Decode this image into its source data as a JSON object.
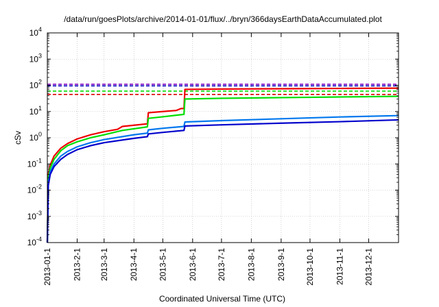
{
  "chart_data": {
    "type": "line",
    "title": "/data/run/goesPlots/archive/2014-01-01/flux/../bryn/366daysEarthDataAccumulated.plot",
    "xlabel": "Coordinated Universal Time (UTC)",
    "ylabel": "cSv",
    "y_scale": "log",
    "ylim": [
      0.0001,
      10000
    ],
    "xlim": [
      "2013-01-01",
      "2014-01-01"
    ],
    "y_ticks": [
      {
        "value": 0.0001,
        "base": "10",
        "exp": "-4"
      },
      {
        "value": 0.001,
        "base": "10",
        "exp": "-3"
      },
      {
        "value": 0.01,
        "base": "10",
        "exp": "-2"
      },
      {
        "value": 0.1,
        "base": "10",
        "exp": "-1"
      },
      {
        "value": 1,
        "base": "10",
        "exp": "0"
      },
      {
        "value": 10,
        "base": "10",
        "exp": "1"
      },
      {
        "value": 100,
        "base": "10",
        "exp": "2"
      },
      {
        "value": 1000,
        "base": "10",
        "exp": "3"
      },
      {
        "value": 10000,
        "base": "10",
        "exp": "4"
      }
    ],
    "x_ticks": [
      {
        "date": "2013-01-01",
        "label": "2013-01-1"
      },
      {
        "date": "2013-02-01",
        "label": "2013-2-1"
      },
      {
        "date": "2013-03-01",
        "label": "2013-3-1"
      },
      {
        "date": "2013-04-01",
        "label": "2013-4-1"
      },
      {
        "date": "2013-05-01",
        "label": "2013-5-1"
      },
      {
        "date": "2013-06-01",
        "label": "2013-6-1"
      },
      {
        "date": "2013-07-01",
        "label": "2013-7-1"
      },
      {
        "date": "2013-08-01",
        "label": "2013-8-1"
      },
      {
        "date": "2013-09-01",
        "label": "2013-9-1"
      },
      {
        "date": "2013-10-01",
        "label": "2013-10-1"
      },
      {
        "date": "2013-11-01",
        "label": "2013-11-1"
      },
      {
        "date": "2013-12-01",
        "label": "2013-12-1"
      }
    ],
    "grid": true,
    "legend": "none",
    "reference_lines": [
      {
        "value": 110,
        "color": "#8000c0",
        "style": "dashed"
      },
      {
        "value": 95,
        "color": "#0000c0",
        "style": "dashed"
      },
      {
        "value": 60,
        "color": "#00dd00",
        "style": "dashed"
      },
      {
        "value": 45,
        "color": "#dd0000",
        "style": "dashed"
      }
    ],
    "series": [
      {
        "color": "#ee0000",
        "points": [
          [
            "2013-01-01",
            0.0001
          ],
          [
            "2013-01-02",
            0.04
          ],
          [
            "2013-01-04",
            0.09
          ],
          [
            "2013-01-08",
            0.2
          ],
          [
            "2013-01-15",
            0.4
          ],
          [
            "2013-01-22",
            0.6
          ],
          [
            "2013-02-01",
            0.9
          ],
          [
            "2013-02-15",
            1.3
          ],
          [
            "2013-03-01",
            1.7
          ],
          [
            "2013-03-15",
            2.1
          ],
          [
            "2013-03-20",
            2.7
          ],
          [
            "2013-04-01",
            3.0
          ],
          [
            "2013-04-15",
            3.4
          ],
          [
            "2013-04-16",
            9.0
          ],
          [
            "2013-05-01",
            10.0
          ],
          [
            "2013-05-15",
            11.0
          ],
          [
            "2013-05-20",
            13.0
          ],
          [
            "2013-05-23",
            13.0
          ],
          [
            "2013-05-24",
            70
          ],
          [
            "2013-07-01",
            72
          ],
          [
            "2013-09-01",
            74
          ],
          [
            "2013-11-01",
            76
          ],
          [
            "2014-01-01",
            78
          ]
        ]
      },
      {
        "color": "#00dd00",
        "points": [
          [
            "2013-01-01",
            0.0001
          ],
          [
            "2013-01-02",
            0.03
          ],
          [
            "2013-01-04",
            0.07
          ],
          [
            "2013-01-08",
            0.15
          ],
          [
            "2013-01-15",
            0.32
          ],
          [
            "2013-01-22",
            0.5
          ],
          [
            "2013-02-01",
            0.7
          ],
          [
            "2013-02-15",
            1.0
          ],
          [
            "2013-03-01",
            1.3
          ],
          [
            "2013-03-20",
            1.9
          ],
          [
            "2013-04-15",
            2.6
          ],
          [
            "2013-04-16",
            5.5
          ],
          [
            "2013-05-01",
            6.3
          ],
          [
            "2013-05-23",
            7.8
          ],
          [
            "2013-05-24",
            30
          ],
          [
            "2013-07-01",
            32
          ],
          [
            "2013-09-01",
            34
          ],
          [
            "2013-11-01",
            36
          ],
          [
            "2014-01-01",
            38
          ]
        ]
      },
      {
        "color": "#0077ee",
        "points": [
          [
            "2013-01-01",
            0.0001
          ],
          [
            "2013-01-02",
            0.02
          ],
          [
            "2013-01-04",
            0.05
          ],
          [
            "2013-01-08",
            0.1
          ],
          [
            "2013-01-15",
            0.2
          ],
          [
            "2013-01-22",
            0.3
          ],
          [
            "2013-02-01",
            0.45
          ],
          [
            "2013-02-15",
            0.65
          ],
          [
            "2013-03-01",
            0.85
          ],
          [
            "2013-04-01",
            1.3
          ],
          [
            "2013-04-15",
            1.5
          ],
          [
            "2013-04-16",
            2.0
          ],
          [
            "2013-05-01",
            2.3
          ],
          [
            "2013-05-23",
            2.7
          ],
          [
            "2013-05-24",
            4.0
          ],
          [
            "2013-07-01",
            4.5
          ],
          [
            "2013-09-01",
            5.3
          ],
          [
            "2013-11-01",
            6.2
          ],
          [
            "2014-01-01",
            7.0
          ]
        ]
      },
      {
        "color": "#0000cc",
        "points": [
          [
            "2013-01-01",
            0.0001
          ],
          [
            "2013-01-02",
            0.015
          ],
          [
            "2013-01-04",
            0.04
          ],
          [
            "2013-01-08",
            0.08
          ],
          [
            "2013-01-15",
            0.15
          ],
          [
            "2013-01-22",
            0.23
          ],
          [
            "2013-02-01",
            0.35
          ],
          [
            "2013-02-15",
            0.5
          ],
          [
            "2013-03-01",
            0.65
          ],
          [
            "2013-04-01",
            0.95
          ],
          [
            "2013-04-15",
            1.1
          ],
          [
            "2013-04-16",
            1.4
          ],
          [
            "2013-05-01",
            1.6
          ],
          [
            "2013-05-23",
            1.9
          ],
          [
            "2013-05-24",
            2.8
          ],
          [
            "2013-07-01",
            3.1
          ],
          [
            "2013-09-01",
            3.6
          ],
          [
            "2013-11-01",
            4.1
          ],
          [
            "2014-01-01",
            4.8
          ]
        ]
      }
    ]
  }
}
